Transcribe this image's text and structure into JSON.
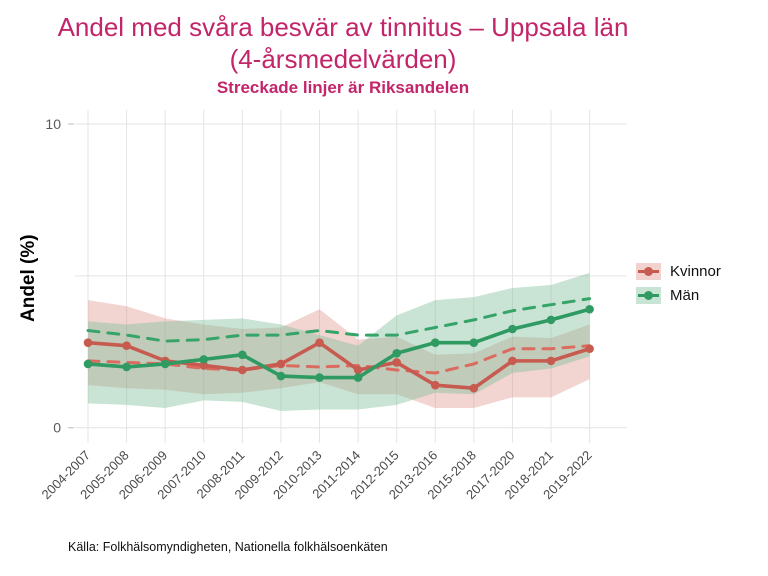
{
  "header": {
    "title_line1": "Andel med svåra besvär av tinnitus – Uppsala län",
    "title_line2": "(4-årsmedelvärden)",
    "subtitle": "Streckade linjer är Riksandelen",
    "title_color": "#c2256a"
  },
  "footer": {
    "source": "Källa: Folkhälsomyndigheten, Nationella folkhälsoenkäten"
  },
  "legend": {
    "position": "right",
    "items": [
      {
        "label": "Kvinnor",
        "band_color": "#f2d2ce",
        "line_color": "#c75b50"
      },
      {
        "label": "Män",
        "band_color": "#c9e4d5",
        "line_color": "#2f9a61"
      }
    ]
  },
  "chart_data": {
    "type": "line",
    "title": "Andel med svåra besvär av tinnitus – Uppsala län (4-årsmedelvärden)",
    "subtitle": "Streckade linjer är Riksandelen",
    "xlabel": "",
    "ylabel": "Andel (%)",
    "ylim": [
      0,
      10
    ],
    "yticks_labeled": [
      0,
      10
    ],
    "gridlines_y": [
      0,
      5,
      10
    ],
    "grid": "on",
    "legend_position": "right",
    "categories": [
      "2004-2007",
      "2005-2008",
      "2006-2009",
      "2007-2010",
      "2008-2011",
      "2009-2012",
      "2010-2013",
      "2011-2014",
      "2012-2015",
      "2013-2016",
      "2015-2018",
      "2017-2020",
      "2018-2021",
      "2019-2022"
    ],
    "series": [
      {
        "name": "Kvinnor Uppsala län",
        "style": "solid",
        "points": true,
        "color": "#c75b50",
        "band_fill": "#d98075",
        "band_opacity": 0.34,
        "values": [
          2.8,
          2.7,
          2.2,
          2.05,
          1.9,
          2.1,
          2.8,
          1.9,
          2.15,
          1.4,
          1.3,
          2.2,
          2.2,
          2.6
        ],
        "band_low": [
          1.4,
          1.3,
          1.25,
          1.1,
          1.15,
          1.3,
          1.5,
          1.1,
          1.1,
          0.65,
          0.65,
          1.0,
          1.0,
          1.6
        ],
        "band_high": [
          4.2,
          4.0,
          3.6,
          3.4,
          3.25,
          3.3,
          3.9,
          2.9,
          3.0,
          2.4,
          2.45,
          3.0,
          2.95,
          3.4
        ]
      },
      {
        "name": "Män Uppsala län",
        "style": "solid",
        "points": true,
        "color": "#2f9a61",
        "band_fill": "#7fbf9c",
        "band_opacity": 0.42,
        "values": [
          2.1,
          2.0,
          2.1,
          2.25,
          2.4,
          1.7,
          1.65,
          1.65,
          2.45,
          2.8,
          2.8,
          3.25,
          3.55,
          3.9
        ],
        "band_low": [
          0.8,
          0.75,
          0.65,
          0.9,
          0.85,
          0.55,
          0.6,
          0.6,
          0.75,
          1.15,
          1.1,
          1.8,
          1.95,
          2.35
        ],
        "band_high": [
          3.5,
          3.4,
          3.5,
          3.55,
          3.6,
          3.4,
          3.05,
          2.7,
          3.7,
          4.2,
          4.3,
          4.6,
          4.7,
          5.1
        ]
      },
      {
        "name": "Kvinnor riket",
        "style": "dashed",
        "points": false,
        "color": "#da6b5e",
        "values": [
          2.2,
          2.15,
          2.1,
          1.95,
          1.9,
          2.05,
          2.0,
          2.05,
          1.9,
          1.8,
          2.1,
          2.6,
          2.6,
          2.7
        ]
      },
      {
        "name": "Män riket",
        "style": "dashed",
        "points": false,
        "color": "#36a468",
        "values": [
          3.2,
          3.05,
          2.85,
          2.9,
          3.05,
          3.05,
          3.2,
          3.05,
          3.05,
          3.3,
          3.55,
          3.85,
          4.05,
          4.25
        ]
      }
    ]
  }
}
